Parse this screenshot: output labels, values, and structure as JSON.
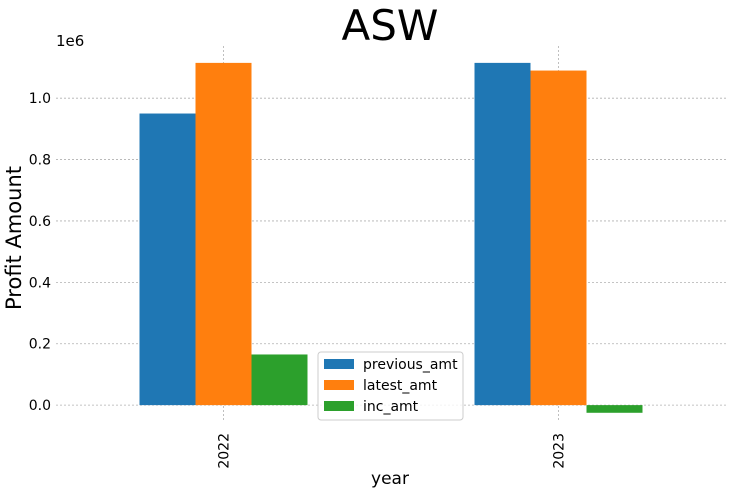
{
  "chart_data": {
    "type": "bar",
    "title": "ASW",
    "xlabel": "year",
    "ylabel": "Profit Amount",
    "offset_label": "1e6",
    "categories": [
      "2022",
      "2023"
    ],
    "series": [
      {
        "name": "previous_amt",
        "color": "#1f77b4",
        "values": [
          950000,
          1115000
        ]
      },
      {
        "name": "latest_amt",
        "color": "#ff7f0e",
        "values": [
          1115000,
          1090000
        ]
      },
      {
        "name": "inc_amt",
        "color": "#2ca02c",
        "values": [
          165000,
          -25000
        ]
      }
    ],
    "ylim": [
      -0.055,
      1.17
    ],
    "yticks": [
      0.0,
      0.2,
      0.4,
      0.6,
      0.8,
      1.0
    ],
    "ytick_labels": [
      "0.0",
      "0.2",
      "0.4",
      "0.6",
      "0.8",
      "1.0"
    ],
    "grid": true,
    "legend_position": "bottom-center"
  }
}
